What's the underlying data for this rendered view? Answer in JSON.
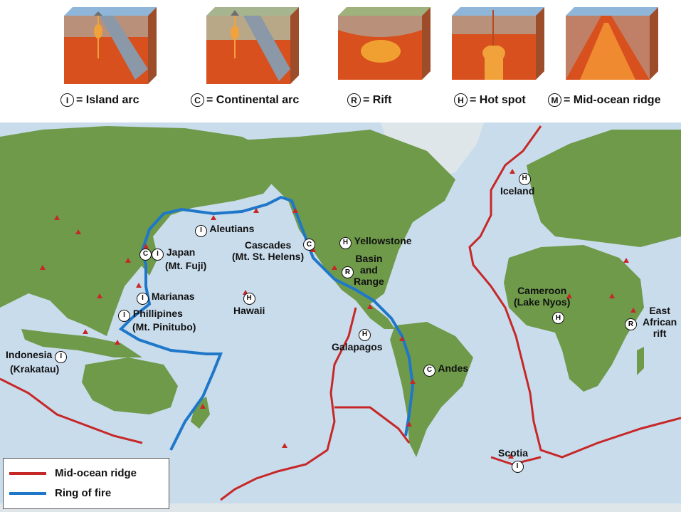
{
  "volcano_types": [
    {
      "code": "I",
      "label": "= Island arc"
    },
    {
      "code": "C",
      "label": "= Continental arc"
    },
    {
      "code": "R",
      "label": "= Rift"
    },
    {
      "code": "H",
      "label": "= Hot spot"
    },
    {
      "code": "M",
      "label": "= Mid-ocean ridge"
    }
  ],
  "map_labels": {
    "aleutians": {
      "code": "I",
      "text": "Aleutians"
    },
    "japan": {
      "code1": "C",
      "code2": "I",
      "line1": "Japan",
      "line2": "(Mt. Fuji)"
    },
    "cascades": {
      "code": "C",
      "line1": "Cascades",
      "line2": "(Mt. St. Helens)"
    },
    "yellowstone": {
      "code": "H",
      "text": "Yellowstone"
    },
    "basin": {
      "code": "R",
      "line1": "Basin",
      "line2": "and",
      "line3": "Range"
    },
    "marianas": {
      "code": "I",
      "text": "Marianas"
    },
    "hawaii": {
      "code": "H",
      "text": "Hawaii"
    },
    "phillipines": {
      "code": "I",
      "line1": "Phillipines",
      "line2": "(Mt. Pinitubo)"
    },
    "galapagos": {
      "code": "H",
      "text": "Galapagos"
    },
    "indonesia": {
      "code": "I",
      "line1": "Indonesia",
      "line2": "(Krakatau)"
    },
    "andes": {
      "code": "C",
      "text": "Andes"
    },
    "iceland": {
      "code": "H",
      "text": "Iceland"
    },
    "cameroon": {
      "code": "H",
      "line1": "Cameroon",
      "line2": "(Lake Nyos)"
    },
    "east_african": {
      "code": "R",
      "line1": "East",
      "line2": "African",
      "line3": "rift"
    },
    "scotia": {
      "code": "I",
      "text": "Scotia"
    }
  },
  "legend": {
    "ridge": {
      "label": "Mid-ocean ridge",
      "color": "#c62828"
    },
    "ring": {
      "label": "Ring of fire",
      "color": "#1f77c9"
    }
  },
  "colors": {
    "ocean": "#c9dcec",
    "land": "#6e9a4a",
    "volcano": "#c62828"
  }
}
